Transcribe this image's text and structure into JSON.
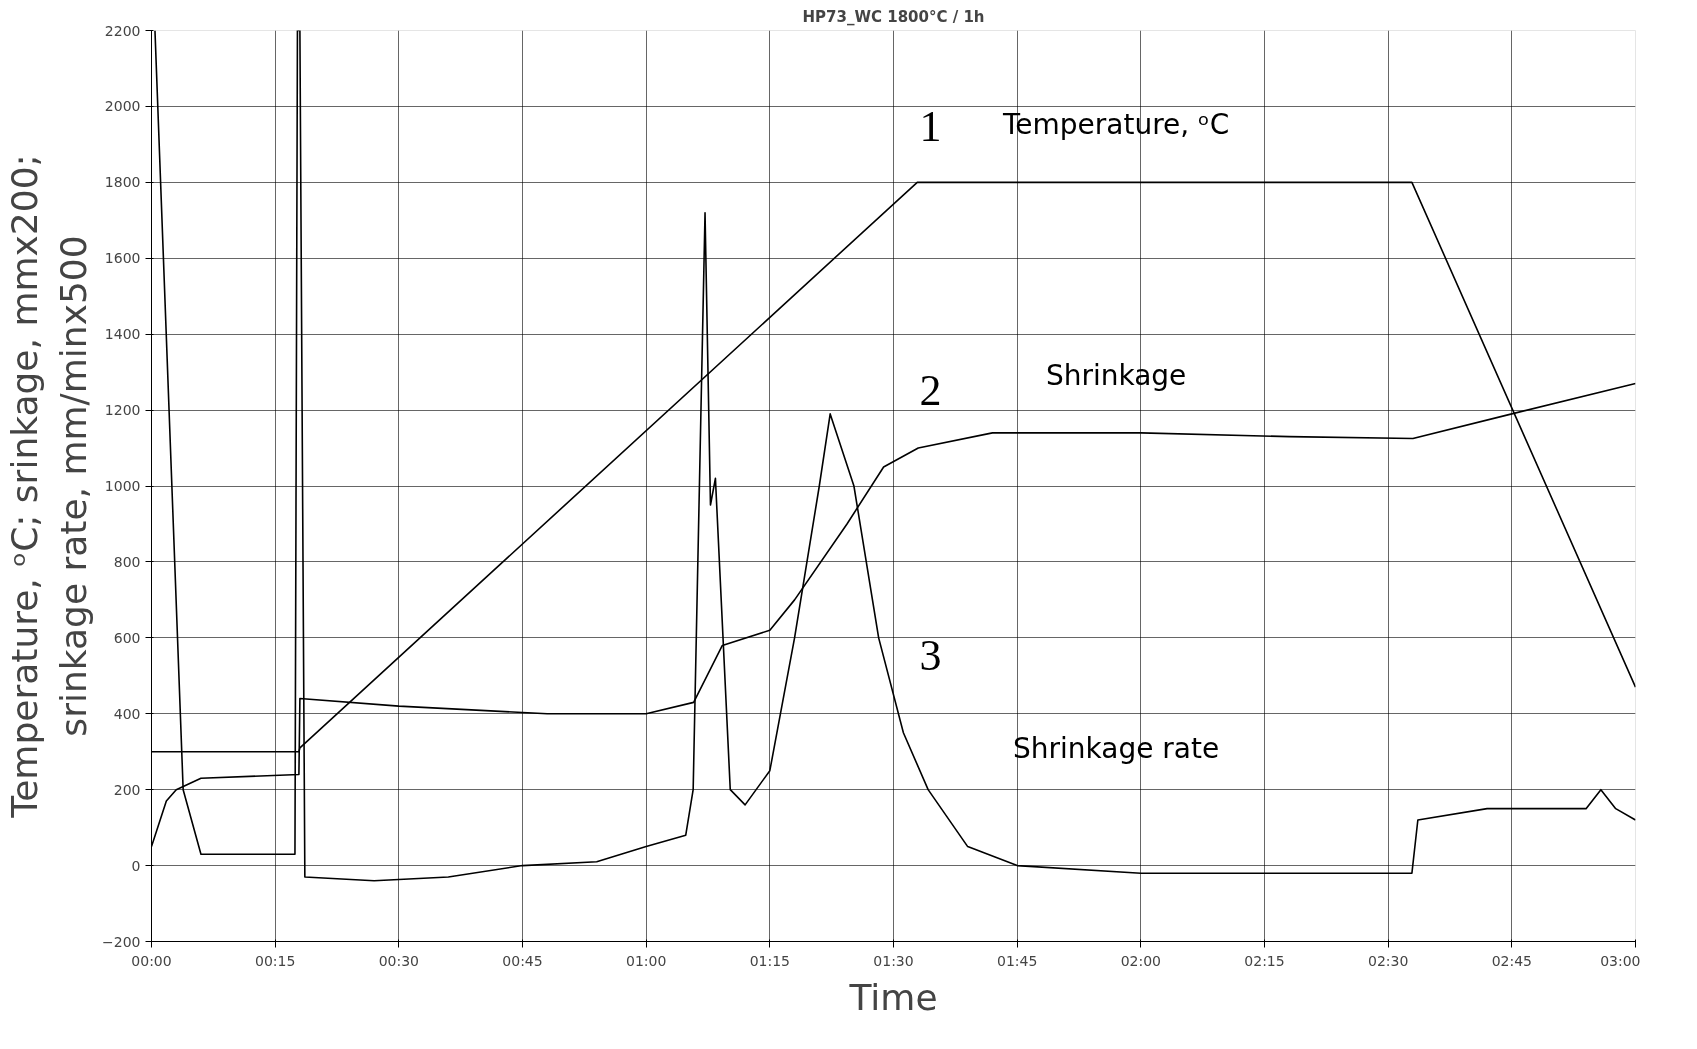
{
  "chart_data": {
    "type": "line",
    "title": "HP73_WC 1800°C / 1h",
    "xlabel": "Time",
    "ylabel": "Temperature, ᵒC; srinkage, mmx200;\nsrinkage rate, mm/minx500",
    "xlim": [
      0,
      3
    ],
    "ylim": [
      -200,
      2200
    ],
    "xticks": [
      {
        "value": 0,
        "label": "00:00"
      },
      {
        "value": 0.25,
        "label": "00:15"
      },
      {
        "value": 0.5,
        "label": "00:30"
      },
      {
        "value": 0.75,
        "label": "00:45"
      },
      {
        "value": 1,
        "label": "01:00"
      },
      {
        "value": 1.25,
        "label": "01:15"
      },
      {
        "value": 1.5,
        "label": "01:30"
      },
      {
        "value": 1.75,
        "label": "01:45"
      },
      {
        "value": 2,
        "label": "02:00"
      },
      {
        "value": 2.25,
        "label": "02:15"
      },
      {
        "value": 2.5,
        "label": "02:30"
      },
      {
        "value": 2.75,
        "label": "02:45"
      },
      {
        "value": 3,
        "label": "03:00"
      }
    ],
    "yticks": [
      -200,
      0,
      200,
      400,
      600,
      800,
      1000,
      1200,
      1400,
      1600,
      1800,
      2000,
      2200
    ],
    "grid": true,
    "marker": "none",
    "line_style": "solid",
    "series": [
      {
        "name": "Temperature, ᵒC",
        "color": "#000000",
        "x": [
          0,
          0.298,
          0.3,
          1.548,
          2.548,
          3.0
        ],
        "values": [
          300,
          300,
          310,
          1800,
          1800,
          470
        ]
      },
      {
        "name": "Shrinkage",
        "color": "#000000",
        "x": [
          0,
          0.03,
          0.05,
          0.1,
          0.298,
          0.3,
          0.5,
          0.8,
          1.0,
          1.096,
          1.154,
          1.25,
          1.3,
          1.406,
          1.48,
          1.55,
          1.7,
          2.0,
          2.3,
          2.55,
          2.75,
          3.0
        ],
        "values": [
          50,
          170,
          200,
          230,
          240,
          440,
          420,
          400,
          400,
          430,
          580,
          620,
          700,
          900,
          1050,
          1100,
          1140,
          1140,
          1130,
          1125,
          1190,
          1270
        ]
      },
      {
        "name": "Shrinkage rate",
        "color": "#000000",
        "x": [
          0.007,
          0.064,
          0.1,
          0.2,
          0.29,
          0.295,
          0.3,
          0.31,
          0.45,
          0.6,
          0.75,
          0.9,
          1.0,
          1.08,
          1.095,
          1.119,
          1.13,
          1.14,
          1.17,
          1.2,
          1.25,
          1.3,
          1.35,
          1.372,
          1.42,
          1.47,
          1.52,
          1.57,
          1.65,
          1.75,
          2.0,
          2.3,
          2.548,
          2.56,
          2.7,
          2.9,
          2.93,
          2.96,
          3.0
        ],
        "values": [
          2200,
          200,
          30,
          30,
          30,
          2200,
          2200,
          -30,
          -40,
          -30,
          0,
          10,
          50,
          80,
          200,
          1720,
          950,
          1020,
          200,
          160,
          250,
          600,
          1000,
          1190,
          1000,
          600,
          350,
          200,
          50,
          0,
          -20,
          -20,
          -20,
          120,
          150,
          150,
          200,
          150,
          120
        ]
      }
    ],
    "annotations": [
      "1",
      "2",
      "3"
    ]
  }
}
